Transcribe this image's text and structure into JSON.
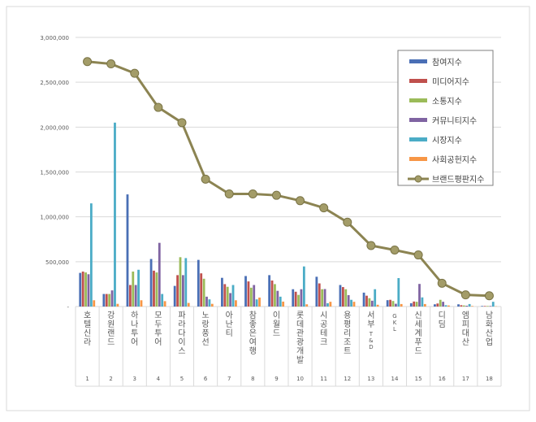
{
  "chart_data": {
    "type": "bar",
    "title": "",
    "xlabel": "",
    "ylabel": "",
    "ylim": [
      0,
      3000000
    ],
    "yticks": [
      "0",
      "500,000",
      "1,000,000",
      "1,500,000",
      "2,000,000",
      "2,500,000",
      "3,000,000"
    ],
    "grid": true,
    "legend_position": "top-right",
    "categories": [
      "호텔신라",
      "강원랜드",
      "하나투어",
      "모두투어",
      "파라다이스",
      "노랑풍선",
      "아난티",
      "참좋은여행",
      "이월드",
      "롯데관광개발",
      "시공테크",
      "용평리조트",
      "서부T&D",
      "GKL",
      "신세계푸드",
      "디딤",
      "엠피대산",
      "남화산업"
    ],
    "ranks": [
      "1",
      "2",
      "3",
      "4",
      "5",
      "6",
      "7",
      "8",
      "9",
      "10",
      "11",
      "12",
      "13",
      "14",
      "15",
      "16",
      "17",
      "18"
    ],
    "series": [
      {
        "name": "참여지수",
        "type": "bar",
        "color": "#4a6fb5",
        "values": [
          375000,
          140000,
          1250000,
          530000,
          230000,
          520000,
          320000,
          340000,
          350000,
          193000,
          332000,
          240000,
          155000,
          71000,
          37000,
          25000,
          25000,
          6000
        ]
      },
      {
        "name": "미디어지수",
        "type": "bar",
        "color": "#c0504d",
        "values": [
          390000,
          140000,
          240000,
          400000,
          350000,
          370000,
          250000,
          280000,
          290000,
          165000,
          258000,
          217000,
          121000,
          75000,
          56000,
          34000,
          15000,
          6000
        ]
      },
      {
        "name": "소통지수",
        "type": "bar",
        "color": "#9bbb59",
        "values": [
          380000,
          140000,
          390000,
          380000,
          550000,
          310000,
          220000,
          210000,
          250000,
          130000,
          193000,
          193000,
          93000,
          62000,
          53000,
          75000,
          12000,
          6000
        ]
      },
      {
        "name": "커뮤니티지수",
        "type": "bar",
        "color": "#8064a2",
        "values": [
          360000,
          180000,
          240000,
          710000,
          350000,
          110000,
          150000,
          240000,
          175000,
          193000,
          195000,
          127000,
          65000,
          31000,
          252000,
          53000,
          9000,
          6000
        ]
      },
      {
        "name": "시장지수",
        "type": "bar",
        "color": "#4bacc6",
        "values": [
          1150000,
          2050000,
          410000,
          140000,
          540000,
          80000,
          240000,
          80000,
          110000,
          447000,
          37000,
          75000,
          193000,
          317000,
          102000,
          15000,
          28000,
          53000
        ]
      },
      {
        "name": "사회공헌지수",
        "type": "bar",
        "color": "#f79646",
        "values": [
          70000,
          30000,
          70000,
          60000,
          40000,
          30000,
          70000,
          100000,
          55000,
          25000,
          53000,
          53000,
          20000,
          28000,
          28000,
          12000,
          6000,
          3000
        ]
      },
      {
        "name": "브랜드평판지수",
        "type": "line",
        "color": "#8c8452",
        "values": [
          2730000,
          2705000,
          2600000,
          2220000,
          2050000,
          1420000,
          1255000,
          1255000,
          1240000,
          1180000,
          1100000,
          940000,
          680000,
          630000,
          575000,
          260000,
          130000,
          120000
        ]
      }
    ]
  }
}
